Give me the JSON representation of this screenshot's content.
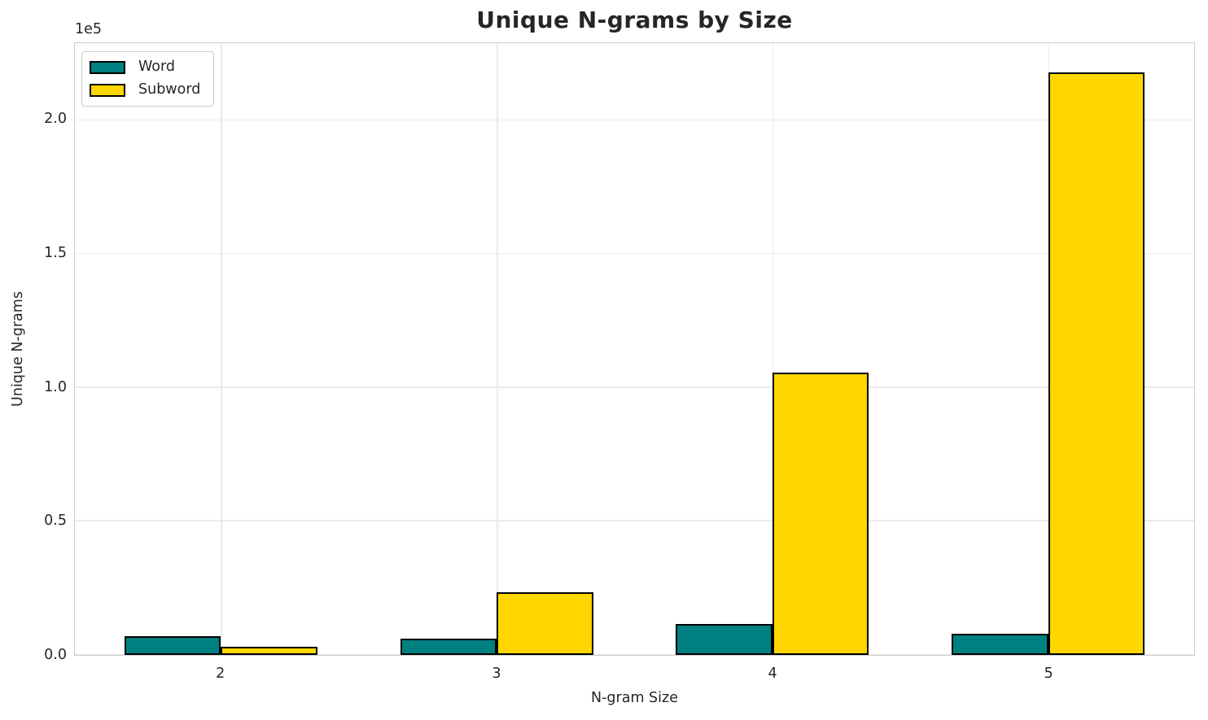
{
  "chart_data": {
    "type": "bar",
    "title": "Unique N-grams by Size",
    "xlabel": "N-gram Size",
    "ylabel": "Unique N-grams",
    "offset_text": "1e5",
    "categories": [
      2,
      3,
      4,
      5
    ],
    "series": [
      {
        "name": "Word",
        "color": "#008080",
        "values": [
          7000,
          6000,
          11500,
          8000
        ]
      },
      {
        "name": "Subword",
        "color": "#FFD700",
        "values": [
          3000,
          23500,
          105800,
          218000
        ]
      }
    ],
    "bar_width_units": 0.35,
    "bar_edge_color": "#000000",
    "xlim": [
      1.47,
      5.53
    ],
    "ylim": [
      0,
      229000
    ],
    "yticks": [
      0,
      50000,
      100000,
      150000,
      200000
    ],
    "ytick_labels": [
      "0.0",
      "0.5",
      "1.0",
      "1.5",
      "2.0"
    ],
    "xtick_labels": [
      "2",
      "3",
      "4",
      "5"
    ],
    "grid": true,
    "legend_position": "upper left",
    "colors": {
      "text": "#262626",
      "grid": "#ebebeb",
      "spine": "#cccccc",
      "background": "#ffffff"
    }
  }
}
